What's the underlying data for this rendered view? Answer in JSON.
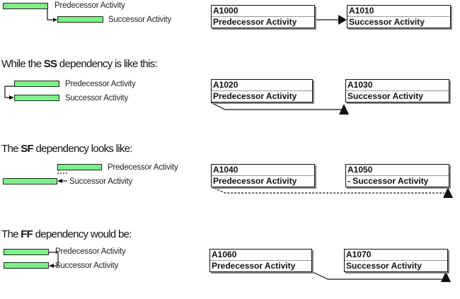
{
  "sections": [
    {
      "heading": null,
      "gantt": {
        "pred": "Predecessor Activity",
        "succ": "Successor Activity"
      },
      "network": {
        "pred_id": "A1000",
        "pred_name": "Predecessor Activity",
        "succ_id": "A1010",
        "succ_name": "Successor Activity"
      }
    },
    {
      "heading": {
        "pre": "While the ",
        "type": "SS",
        "post": " dependency is like this:"
      },
      "gantt": {
        "pred": "Predecessor Activity",
        "succ": "Successor Activity"
      },
      "network": {
        "pred_id": "A1020",
        "pred_name": "Predecessor Activity",
        "succ_id": "A1030",
        "succ_name": "Successor Activity"
      }
    },
    {
      "heading": {
        "pre": "The ",
        "type": "SF",
        "post": " dependency looks like:"
      },
      "gantt": {
        "pred": "Predecessor Activity",
        "succ": "Successor Activity"
      },
      "network": {
        "pred_id": "A1040",
        "pred_name": "Predecessor Activity",
        "succ_id": "A1050",
        "succ_name": "- Successor Activity"
      }
    },
    {
      "heading": {
        "pre": "The ",
        "type": "FF",
        "post": " dependency would be:"
      },
      "gantt": {
        "pred": "Predecessor Activity",
        "succ": "Successor Activity"
      },
      "network": {
        "pred_id": "A1060",
        "pred_name": "Predecessor Activity",
        "succ_id": "A1070",
        "succ_name": "Successor Activity"
      }
    }
  ],
  "colors": {
    "bar": "#7ef08a",
    "line": "#111111"
  }
}
